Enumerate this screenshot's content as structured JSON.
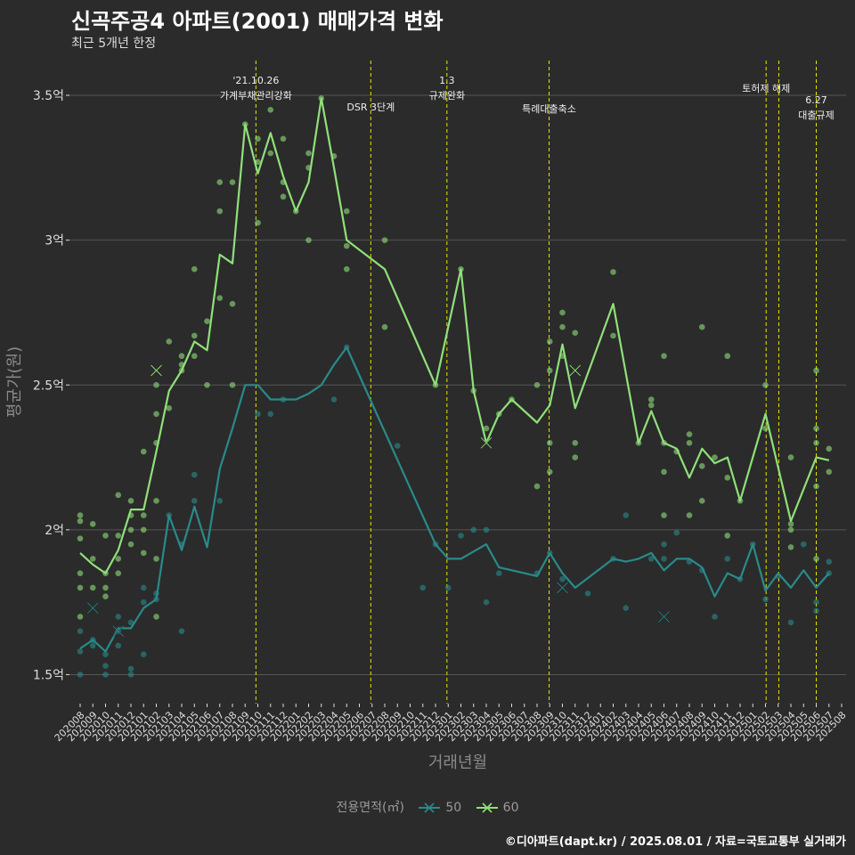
{
  "title": "신곡주공4 아파트(2001) 매매가격 변화",
  "subtitle": "최근 5개년 한정",
  "caption": "©디아파트(dapt.kr) / 2025.08.01 / 자료=국토교통부 실거래가",
  "colors": {
    "background": "#2b2b2b",
    "grid": "#555555",
    "vline": "#e6e600",
    "series50": "#2a8a8a",
    "series60": "#90e07a",
    "axis_text": "#dddddd",
    "axis_title": "#8a8a8a"
  },
  "chart_data": {
    "type": "line",
    "xlabel": "거래년월",
    "ylabel": "평균가(원)",
    "ylim": [
      1.4,
      3.62
    ],
    "y_ticks": [
      1.5,
      2,
      2.5,
      3,
      3.5
    ],
    "y_tick_labels": [
      "1.5억",
      "2억",
      "2.5억",
      "3억",
      "3.5억"
    ],
    "x_categories": [
      "202008",
      "202009",
      "202010",
      "202011",
      "202012",
      "202101",
      "202102",
      "202103",
      "202104",
      "202105",
      "202106",
      "202107",
      "202108",
      "202109",
      "202110",
      "202111",
      "202112",
      "202201",
      "202202",
      "202203",
      "202204",
      "202205",
      "202206",
      "202207",
      "202208",
      "202209",
      "202210",
      "202211",
      "202212",
      "202301",
      "202302",
      "202303",
      "202304",
      "202305",
      "202306",
      "202307",
      "202308",
      "202309",
      "202310",
      "202311",
      "202312",
      "202401",
      "202402",
      "202403",
      "202404",
      "202405",
      "202406",
      "202407",
      "202408",
      "202409",
      "202410",
      "202411",
      "202412",
      "202501",
      "202502",
      "202503",
      "202504",
      "202505",
      "202506",
      "202507",
      "202508"
    ],
    "legend_title": "전용면적(㎡)",
    "grid": true,
    "legend_position": "bottom",
    "series": [
      {
        "name": "50",
        "color": "#2a8a8a",
        "line": [
          [
            0,
            1.59
          ],
          [
            1,
            1.62
          ],
          [
            2,
            1.58
          ],
          [
            3,
            1.66
          ],
          [
            4,
            1.66
          ],
          [
            5,
            1.73
          ],
          [
            6,
            1.76
          ],
          [
            7,
            2.05
          ],
          [
            8,
            1.93
          ],
          [
            9,
            2.08
          ],
          [
            10,
            1.94
          ],
          [
            11,
            2.21
          ],
          [
            12,
            2.35
          ],
          [
            13,
            2.5
          ],
          [
            14,
            2.5
          ],
          [
            15,
            2.45
          ],
          [
            16,
            2.45
          ],
          [
            17,
            2.45
          ],
          [
            18,
            2.47
          ],
          [
            19,
            2.5
          ],
          [
            20,
            2.57
          ],
          [
            21,
            2.63
          ],
          [
            28,
            1.95
          ],
          [
            29,
            1.9
          ],
          [
            30,
            1.9
          ],
          [
            32,
            1.95
          ],
          [
            33,
            1.87
          ],
          [
            35,
            1.85
          ],
          [
            36,
            1.84
          ],
          [
            37,
            1.92
          ],
          [
            38,
            1.85
          ],
          [
            39,
            1.8
          ],
          [
            42,
            1.9
          ],
          [
            43,
            1.89
          ],
          [
            44,
            1.9
          ],
          [
            45,
            1.92
          ],
          [
            46,
            1.86
          ],
          [
            47,
            1.9
          ],
          [
            48,
            1.9
          ],
          [
            49,
            1.87
          ],
          [
            50,
            1.77
          ],
          [
            51,
            1.85
          ],
          [
            52,
            1.83
          ],
          [
            53,
            1.95
          ],
          [
            54,
            1.79
          ],
          [
            55,
            1.85
          ],
          [
            56,
            1.8
          ],
          [
            57,
            1.86
          ],
          [
            58,
            1.8
          ],
          [
            59,
            1.85
          ]
        ],
        "points": [
          [
            0,
            1.5
          ],
          [
            0,
            1.65
          ],
          [
            0,
            1.58
          ],
          [
            1,
            1.6
          ],
          [
            1,
            1.62
          ],
          [
            2,
            1.5
          ],
          [
            2,
            1.53
          ],
          [
            2,
            1.57
          ],
          [
            3,
            1.6
          ],
          [
            3,
            1.65
          ],
          [
            3,
            1.7
          ],
          [
            4,
            1.5
          ],
          [
            4,
            1.52
          ],
          [
            4,
            1.68
          ],
          [
            5,
            1.57
          ],
          [
            5,
            1.75
          ],
          [
            5,
            1.8
          ],
          [
            6,
            1.76
          ],
          [
            6,
            1.78
          ],
          [
            7,
            2.05
          ],
          [
            8,
            1.65
          ],
          [
            8,
            1.95
          ],
          [
            9,
            2.19
          ],
          [
            9,
            2.1
          ],
          [
            11,
            2.1
          ],
          [
            14,
            2.4
          ],
          [
            15,
            2.4
          ],
          [
            16,
            2.45
          ],
          [
            20,
            2.45
          ],
          [
            21,
            2.63
          ],
          [
            25,
            2.29
          ],
          [
            27,
            1.8
          ],
          [
            28,
            1.95
          ],
          [
            29,
            1.8
          ],
          [
            30,
            1.98
          ],
          [
            31,
            2.0
          ],
          [
            32,
            2.0
          ],
          [
            32,
            1.75
          ],
          [
            33,
            1.85
          ],
          [
            36,
            1.85
          ],
          [
            37,
            1.92
          ],
          [
            38,
            1.83
          ],
          [
            40,
            1.78
          ],
          [
            42,
            1.9
          ],
          [
            43,
            1.73
          ],
          [
            43,
            2.05
          ],
          [
            45,
            1.9
          ],
          [
            46,
            1.9
          ],
          [
            46,
            1.95
          ],
          [
            47,
            1.99
          ],
          [
            48,
            1.89
          ],
          [
            49,
            1.86
          ],
          [
            50,
            1.7
          ],
          [
            51,
            1.9
          ],
          [
            52,
            1.83
          ],
          [
            53,
            1.95
          ],
          [
            54,
            1.76
          ],
          [
            55,
            1.84
          ],
          [
            56,
            1.68
          ],
          [
            57,
            1.95
          ],
          [
            58,
            1.72
          ],
          [
            58,
            1.75
          ],
          [
            59,
            1.85
          ],
          [
            59,
            1.89
          ]
        ],
        "x_marks": [
          [
            1,
            1.73
          ],
          [
            3,
            1.65
          ],
          [
            38,
            1.8
          ],
          [
            46,
            1.7
          ]
        ]
      },
      {
        "name": "60",
        "color": "#90e07a",
        "line": [
          [
            0,
            1.92
          ],
          [
            1,
            1.88
          ],
          [
            2,
            1.85
          ],
          [
            3,
            1.93
          ],
          [
            4,
            2.07
          ],
          [
            5,
            2.07
          ],
          [
            6,
            2.27
          ],
          [
            7,
            2.48
          ],
          [
            8,
            2.55
          ],
          [
            9,
            2.65
          ],
          [
            10,
            2.62
          ],
          [
            11,
            2.95
          ],
          [
            12,
            2.92
          ],
          [
            13,
            3.4
          ],
          [
            14,
            3.23
          ],
          [
            15,
            3.37
          ],
          [
            16,
            3.22
          ],
          [
            17,
            3.1
          ],
          [
            18,
            3.2
          ],
          [
            19,
            3.49
          ],
          [
            20,
            3.25
          ],
          [
            21,
            3.0
          ],
          [
            24,
            2.9
          ],
          [
            28,
            2.5
          ],
          [
            30,
            2.9
          ],
          [
            31,
            2.48
          ],
          [
            32,
            2.3
          ],
          [
            33,
            2.4
          ],
          [
            34,
            2.45
          ],
          [
            36,
            2.37
          ],
          [
            37,
            2.43
          ],
          [
            38,
            2.64
          ],
          [
            39,
            2.42
          ],
          [
            42,
            2.78
          ],
          [
            44,
            2.3
          ],
          [
            45,
            2.41
          ],
          [
            46,
            2.3
          ],
          [
            47,
            2.28
          ],
          [
            48,
            2.18
          ],
          [
            49,
            2.28
          ],
          [
            50,
            2.23
          ],
          [
            51,
            2.25
          ],
          [
            52,
            2.1
          ],
          [
            54,
            2.4
          ],
          [
            56,
            2.03
          ],
          [
            58,
            2.25
          ],
          [
            59,
            2.24
          ]
        ],
        "points": [
          [
            0,
            2.05
          ],
          [
            0,
            2.03
          ],
          [
            0,
            1.97
          ],
          [
            0,
            1.85
          ],
          [
            0,
            1.8
          ],
          [
            0,
            1.7
          ],
          [
            1,
            2.02
          ],
          [
            1,
            1.9
          ],
          [
            1,
            1.8
          ],
          [
            2,
            1.98
          ],
          [
            2,
            1.85
          ],
          [
            2,
            1.8
          ],
          [
            2,
            1.77
          ],
          [
            3,
            2.12
          ],
          [
            3,
            1.98
          ],
          [
            3,
            1.9
          ],
          [
            3,
            1.85
          ],
          [
            4,
            2.1
          ],
          [
            4,
            2.05
          ],
          [
            4,
            2.0
          ],
          [
            4,
            1.95
          ],
          [
            5,
            2.27
          ],
          [
            5,
            2.05
          ],
          [
            5,
            2.0
          ],
          [
            5,
            1.92
          ],
          [
            6,
            2.5
          ],
          [
            6,
            2.4
          ],
          [
            6,
            2.3
          ],
          [
            6,
            2.1
          ],
          [
            6,
            1.9
          ],
          [
            6,
            1.7
          ],
          [
            7,
            2.65
          ],
          [
            7,
            2.42
          ],
          [
            8,
            2.6
          ],
          [
            8,
            2.57
          ],
          [
            8,
            2.55
          ],
          [
            9,
            2.9
          ],
          [
            9,
            2.67
          ],
          [
            9,
            2.6
          ],
          [
            10,
            2.72
          ],
          [
            10,
            2.5
          ],
          [
            11,
            3.2
          ],
          [
            11,
            3.1
          ],
          [
            11,
            2.8
          ],
          [
            12,
            3.2
          ],
          [
            12,
            2.78
          ],
          [
            12,
            2.5
          ],
          [
            13,
            3.4
          ],
          [
            14,
            3.35
          ],
          [
            14,
            3.27
          ],
          [
            14,
            3.06
          ],
          [
            15,
            3.45
          ],
          [
            15,
            3.3
          ],
          [
            16,
            3.35
          ],
          [
            16,
            3.2
          ],
          [
            16,
            3.15
          ],
          [
            17,
            3.1
          ],
          [
            18,
            3.3
          ],
          [
            18,
            3.25
          ],
          [
            18,
            3.0
          ],
          [
            19,
            3.49
          ],
          [
            20,
            3.29
          ],
          [
            21,
            3.1
          ],
          [
            21,
            2.98
          ],
          [
            21,
            2.9
          ],
          [
            24,
            3.0
          ],
          [
            24,
            2.7
          ],
          [
            28,
            2.5
          ],
          [
            30,
            2.9
          ],
          [
            31,
            2.48
          ],
          [
            32,
            2.35
          ],
          [
            33,
            2.4
          ],
          [
            34,
            2.45
          ],
          [
            36,
            2.5
          ],
          [
            36,
            2.15
          ],
          [
            37,
            2.65
          ],
          [
            37,
            2.55
          ],
          [
            37,
            2.3
          ],
          [
            37,
            2.2
          ],
          [
            38,
            2.75
          ],
          [
            38,
            2.7
          ],
          [
            38,
            2.6
          ],
          [
            39,
            2.68
          ],
          [
            39,
            2.3
          ],
          [
            39,
            2.25
          ],
          [
            42,
            2.89
          ],
          [
            42,
            2.67
          ],
          [
            44,
            2.3
          ],
          [
            45,
            2.45
          ],
          [
            45,
            2.43
          ],
          [
            46,
            2.6
          ],
          [
            46,
            2.3
          ],
          [
            46,
            2.2
          ],
          [
            46,
            2.05
          ],
          [
            47,
            2.27
          ],
          [
            48,
            2.33
          ],
          [
            48,
            2.3
          ],
          [
            48,
            2.05
          ],
          [
            49,
            2.7
          ],
          [
            49,
            2.22
          ],
          [
            49,
            2.1
          ],
          [
            50,
            2.25
          ],
          [
            51,
            2.6
          ],
          [
            51,
            2.18
          ],
          [
            51,
            1.98
          ],
          [
            52,
            2.1
          ],
          [
            54,
            2.5
          ],
          [
            54,
            2.35
          ],
          [
            56,
            2.25
          ],
          [
            56,
            2.02
          ],
          [
            56,
            2.0
          ],
          [
            56,
            1.94
          ],
          [
            58,
            2.55
          ],
          [
            58,
            2.35
          ],
          [
            58,
            2.3
          ],
          [
            58,
            2.15
          ],
          [
            58,
            1.9
          ],
          [
            59,
            2.28
          ],
          [
            59,
            2.2
          ]
        ],
        "x_marks": [
          [
            6,
            2.55
          ],
          [
            32,
            2.3
          ],
          [
            39,
            2.55
          ]
        ]
      }
    ],
    "annotations": [
      {
        "x": 13.85,
        "label": "'21.10.26",
        "label2": "가계부채관리강화"
      },
      {
        "x": 22.9,
        "label": "DSR 3단계",
        "label2": ""
      },
      {
        "x": 28.9,
        "label": "1.3",
        "label2": "규제완화"
      },
      {
        "x": 36.95,
        "label": "특례대출축소",
        "label2": ""
      },
      {
        "x": 54.05,
        "label": "토허제 해제",
        "label2": ""
      },
      {
        "x": 55.05,
        "label": "",
        "label2": ""
      },
      {
        "x": 58.0,
        "label": "6.27",
        "label2": "대출규제"
      }
    ]
  }
}
